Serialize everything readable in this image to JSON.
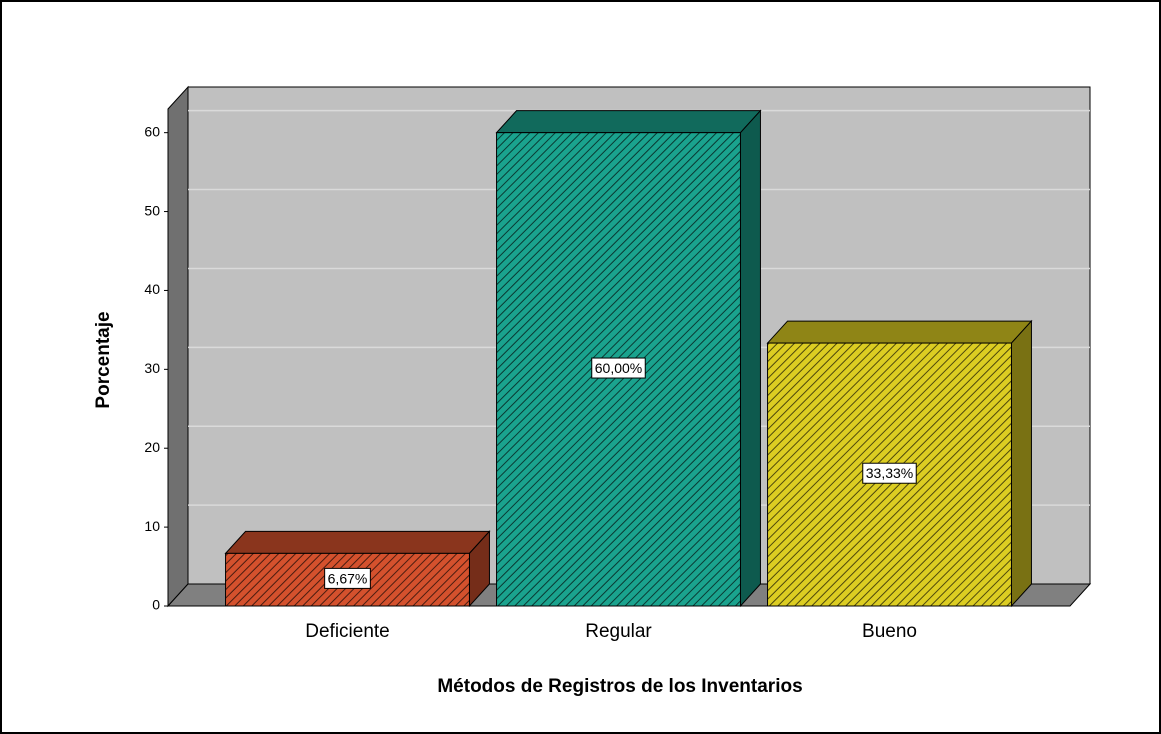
{
  "chart_data": {
    "type": "bar",
    "categories": [
      "Deficiente",
      "Regular",
      "Bueno"
    ],
    "values": [
      6.67,
      60,
      33.33
    ],
    "value_labels": [
      "6,67%",
      "60,00%",
      "33,33%"
    ],
    "colors": [
      "#d4512d",
      "#1aa38e",
      "#dccd22"
    ],
    "x_label": "Métodos de Registros de los Inventarios",
    "y_label": "Porcentaje",
    "ylim": [
      0,
      63
    ],
    "yticks": [
      0,
      10,
      20,
      30,
      40,
      50,
      60
    ],
    "grid": true
  }
}
